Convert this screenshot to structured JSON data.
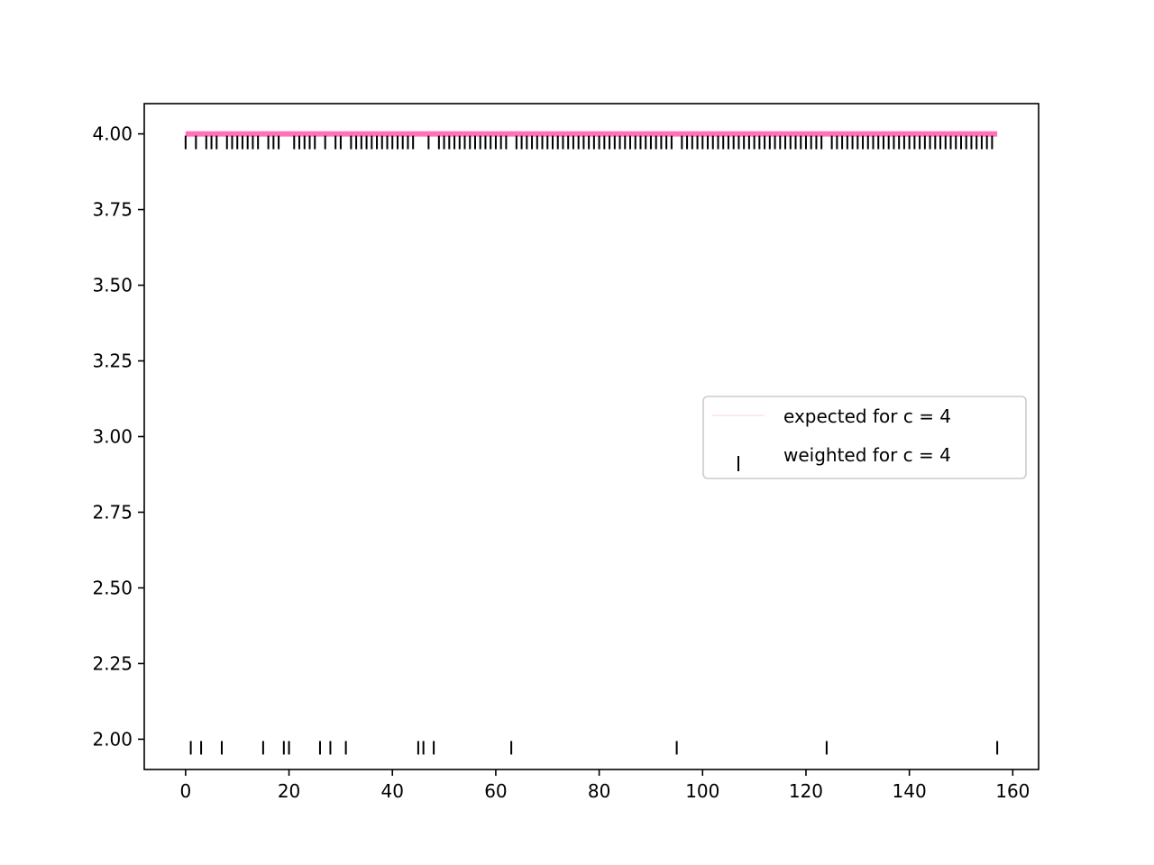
{
  "chart_data": {
    "type": "scatter",
    "title": "",
    "xlabel": "",
    "ylabel": "",
    "xlim": [
      -8,
      165
    ],
    "ylim": [
      1.9,
      4.1
    ],
    "x_ticks": [
      0,
      20,
      40,
      60,
      80,
      100,
      120,
      140,
      160
    ],
    "y_ticks": [
      2.0,
      2.25,
      2.5,
      2.75,
      3.0,
      3.25,
      3.5,
      3.75,
      4.0
    ],
    "x_tick_labels": [
      "0",
      "20",
      "40",
      "60",
      "80",
      "100",
      "120",
      "140",
      "160"
    ],
    "y_tick_labels": [
      "2.00",
      "2.25",
      "2.50",
      "2.75",
      "3.00",
      "3.25",
      "3.50",
      "3.75",
      "4.00"
    ],
    "grid": false,
    "legend_position": "center-right",
    "series": [
      {
        "name": "expected for c = 4",
        "type": "line",
        "color": "#ff69b4",
        "x": [
          0,
          157
        ],
        "y": [
          4,
          4
        ]
      },
      {
        "name": "weighted for c = 4",
        "type": "scatter",
        "marker": "|",
        "color": "#000000",
        "points_at_2": [
          1,
          3,
          7,
          15,
          19,
          20,
          26,
          28,
          31,
          45,
          46,
          48,
          63,
          95,
          124,
          157
        ],
        "points_at_4": [
          0,
          2,
          4,
          5,
          6,
          8,
          9,
          10,
          11,
          12,
          13,
          14,
          16,
          17,
          18,
          21,
          22,
          23,
          24,
          25,
          27,
          29,
          30,
          32,
          33,
          34,
          35,
          36,
          37,
          38,
          39,
          40,
          41,
          42,
          43,
          44,
          47,
          49,
          50,
          51,
          52,
          53,
          54,
          55,
          56,
          57,
          58,
          59,
          60,
          61,
          62,
          64,
          65,
          66,
          67,
          68,
          69,
          70,
          71,
          72,
          73,
          74,
          75,
          76,
          77,
          78,
          79,
          80,
          81,
          82,
          83,
          84,
          85,
          86,
          87,
          88,
          89,
          90,
          91,
          92,
          93,
          94,
          96,
          97,
          98,
          99,
          100,
          101,
          102,
          103,
          104,
          105,
          106,
          107,
          108,
          109,
          110,
          111,
          112,
          113,
          114,
          115,
          116,
          117,
          118,
          119,
          120,
          121,
          122,
          123,
          125,
          126,
          127,
          128,
          129,
          130,
          131,
          132,
          133,
          134,
          135,
          136,
          137,
          138,
          139,
          140,
          141,
          142,
          143,
          144,
          145,
          146,
          147,
          148,
          149,
          150,
          151,
          152,
          153,
          154,
          155,
          156
        ]
      }
    ]
  },
  "legend": {
    "items": [
      {
        "label": "expected for c = 4"
      },
      {
        "label": "weighted for c = 4"
      }
    ]
  }
}
